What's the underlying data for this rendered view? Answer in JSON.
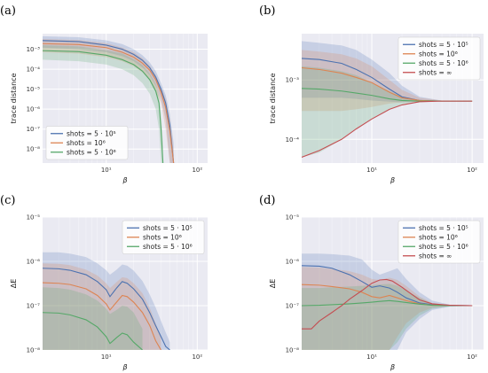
{
  "colors": {
    "blue": "#4c72b0",
    "orange": "#dd8452",
    "green": "#55a868",
    "red": "#c44e52",
    "background": "#eaeaf2",
    "grid": "#ffffff"
  },
  "chart_data": [
    {
      "type": "line",
      "panel": "(a)",
      "xlabel": "β",
      "ylabel": "trace distance",
      "xscale": "log",
      "yscale": "log",
      "xlim": [
        2,
        130
      ],
      "ylim": [
        2e-09,
        0.006
      ],
      "xticks": [
        {
          "v": 10,
          "label": "10¹"
        },
        {
          "v": 100,
          "label": "10²"
        }
      ],
      "yticks": [
        {
          "v": 1e-08,
          "label": "10⁻⁸"
        },
        {
          "v": 1e-07,
          "label": "10⁻⁷"
        },
        {
          "v": 1e-06,
          "label": "10⁻⁶"
        },
        {
          "v": 1e-05,
          "label": "10⁻⁵"
        },
        {
          "v": 0.0001,
          "label": "10⁻⁴"
        },
        {
          "v": 0.001,
          "label": "10⁻³"
        }
      ],
      "grid": true,
      "legend_position": "bottom-left",
      "series": [
        {
          "name": "shots = 5 · 10⁵",
          "color": "blue",
          "x": [
            2,
            5,
            10,
            15,
            20,
            25,
            30,
            35,
            40,
            45,
            50,
            55
          ],
          "y": [
            0.0027,
            0.0024,
            0.0016,
            0.001,
            0.00055,
            0.00028,
            0.00012,
            4e-05,
            1e-05,
            2e-06,
            1.5e-07,
            2e-09
          ],
          "lower": [
            0.0012,
            0.001,
            0.0007,
            0.00045,
            0.00025,
            0.00012,
            5e-05,
            1.5e-05,
            3e-06,
            3e-07,
            2e-09,
            2e-09
          ],
          "upper": [
            0.0045,
            0.004,
            0.0028,
            0.0018,
            0.001,
            0.0005,
            0.00022,
            8e-05,
            2e-05,
            5e-06,
            6e-07,
            2e-08
          ]
        },
        {
          "name": "shots = 10⁶",
          "color": "orange",
          "x": [
            2,
            5,
            10,
            15,
            20,
            25,
            30,
            35,
            40,
            45,
            50,
            55
          ],
          "y": [
            0.0019,
            0.0017,
            0.0012,
            0.0007,
            0.0004,
            0.0002,
            9e-05,
            3e-05,
            7e-06,
            1.2e-06,
            8e-08,
            2e-09
          ],
          "lower": [
            0.0007,
            0.0006,
            0.0004,
            0.00025,
            0.00014,
            7e-05,
            3e-05,
            8e-06,
            2e-06,
            1e-07,
            2e-09,
            2e-09
          ],
          "upper": [
            0.0032,
            0.0029,
            0.002,
            0.0012,
            0.0007,
            0.00035,
            0.00015,
            5e-05,
            1.2e-05,
            3e-06,
            3e-07,
            8e-09
          ]
        },
        {
          "name": "shots = 5 · 10⁶",
          "color": "green",
          "x": [
            2,
            5,
            10,
            15,
            20,
            25,
            30,
            35,
            38,
            40,
            42
          ],
          "y": [
            0.00085,
            0.00075,
            0.0005,
            0.0003,
            0.00017,
            8e-05,
            3e-05,
            8e-06,
            2e-06,
            1e-07,
            2e-09
          ],
          "lower": [
            0.0003,
            0.00025,
            0.00017,
            0.0001,
            5e-05,
            2e-05,
            6e-06,
            1e-06,
            1e-07,
            2e-09,
            2e-09
          ],
          "upper": [
            0.0016,
            0.0014,
            0.0009,
            0.0006,
            0.00032,
            0.00016,
            6e-05,
            1.8e-05,
            5e-06,
            6e-07,
            2e-08
          ]
        }
      ]
    },
    {
      "type": "line",
      "panel": "(b)",
      "xlabel": "β",
      "ylabel": "trace distance",
      "xscale": "log",
      "yscale": "log",
      "xlim": [
        2,
        130
      ],
      "ylim": [
        4e-05,
        0.006
      ],
      "xticks": [
        {
          "v": 10,
          "label": "10¹"
        },
        {
          "v": 100,
          "label": "10²"
        }
      ],
      "yticks": [
        {
          "v": 0.0001,
          "label": "10⁻⁴"
        },
        {
          "v": 0.001,
          "label": "10⁻³"
        }
      ],
      "grid": true,
      "legend_position": "top-right",
      "series": [
        {
          "name": "shots = 5 · 10⁵",
          "color": "blue",
          "x": [
            2,
            3,
            5,
            7,
            10,
            15,
            20,
            30,
            50,
            100
          ],
          "y": [
            0.0023,
            0.0022,
            0.0019,
            0.0015,
            0.0011,
            0.0007,
            0.00052,
            0.00045,
            0.00044,
            0.00044
          ],
          "lower": [
            0.0005,
            0.0005,
            0.0005,
            0.00048,
            0.00045,
            0.00043,
            0.00042,
            0.00043,
            0.00044,
            0.00044
          ],
          "upper": [
            0.0045,
            0.0042,
            0.0038,
            0.0032,
            0.0022,
            0.0013,
            0.0008,
            0.00052,
            0.00045,
            0.00044
          ]
        },
        {
          "name": "shots = 10⁶",
          "color": "orange",
          "x": [
            2,
            3,
            5,
            7,
            10,
            15,
            20,
            30,
            50,
            100
          ],
          "y": [
            0.0016,
            0.0015,
            0.0013,
            0.0011,
            0.0009,
            0.00062,
            0.0005,
            0.00045,
            0.00044,
            0.00044
          ],
          "lower": [
            0.0003,
            0.0003,
            0.0003,
            0.00032,
            0.00035,
            0.0004,
            0.00042,
            0.00043,
            0.00044,
            0.00044
          ],
          "upper": [
            0.0032,
            0.003,
            0.0027,
            0.0023,
            0.0017,
            0.001,
            0.00068,
            0.0005,
            0.00045,
            0.00044
          ]
        },
        {
          "name": "shots = 5 · 10⁶",
          "color": "green",
          "x": [
            2,
            3,
            5,
            7,
            10,
            15,
            20,
            30,
            50,
            100
          ],
          "y": [
            0.00072,
            0.0007,
            0.00065,
            0.0006,
            0.00055,
            0.00048,
            0.00045,
            0.00044,
            0.00044,
            0.00044
          ],
          "lower": [
            5e-05,
            6e-05,
            0.0001,
            0.00015,
            0.00022,
            0.00032,
            0.00038,
            0.00042,
            0.00044,
            0.00044
          ],
          "upper": [
            0.0017,
            0.0016,
            0.0014,
            0.0012,
            0.0009,
            0.00065,
            0.00052,
            0.00046,
            0.00044,
            0.00044
          ]
        },
        {
          "name": "shots = ∞",
          "color": "red",
          "x": [
            2,
            3,
            5,
            7,
            10,
            15,
            20,
            30,
            50,
            100
          ],
          "y": [
            5e-05,
            6.5e-05,
            0.0001,
            0.00015,
            0.00022,
            0.00032,
            0.00038,
            0.00043,
            0.00044,
            0.00044
          ]
        }
      ]
    },
    {
      "type": "line",
      "panel": "(c)",
      "xlabel": "β",
      "ylabel": "ΔE",
      "xscale": "log",
      "yscale": "log",
      "xlim": [
        2,
        130
      ],
      "ylim": [
        1e-08,
        1e-05
      ],
      "xticks": [
        {
          "v": 10,
          "label": "10¹"
        },
        {
          "v": 100,
          "label": "10²"
        }
      ],
      "yticks": [
        {
          "v": 1e-08,
          "label": "10⁻⁸"
        },
        {
          "v": 1e-07,
          "label": "10⁻⁷"
        },
        {
          "v": 1e-06,
          "label": "10⁻⁶"
        },
        {
          "v": 1e-05,
          "label": "10⁻⁵"
        }
      ],
      "grid": true,
      "legend_position": "top-right",
      "series": [
        {
          "name": "shots = 5 · 10⁵",
          "color": "blue",
          "x": [
            2,
            3,
            4,
            6,
            8,
            10,
            11,
            13,
            15,
            17,
            20,
            25,
            30,
            35,
            40,
            45,
            50
          ],
          "y": [
            7e-07,
            6.8e-07,
            6.3e-07,
            5e-07,
            3.5e-07,
            2.3e-07,
            1.6e-07,
            2.5e-07,
            3.5e-07,
            3.2e-07,
            2.4e-07,
            1.4e-07,
            7e-08,
            3.5e-08,
            2e-08,
            1.2e-08,
            1e-08
          ],
          "lower": [
            1e-08,
            1e-08,
            1e-08,
            1e-08,
            1e-08,
            1e-08,
            1e-08,
            1e-08,
            1e-08,
            1e-08,
            1e-08,
            1e-08,
            1e-08,
            1e-08,
            1e-08,
            1e-08,
            1e-08
          ],
          "upper": [
            1.6e-06,
            1.6e-06,
            1.5e-06,
            1.25e-06,
            9e-07,
            6.3e-07,
            5e-07,
            6.5e-07,
            8.5e-07,
            8e-07,
            6.2e-07,
            3.6e-07,
            1.8e-07,
            9e-08,
            4.5e-08,
            2.5e-08,
            1.5e-08
          ]
        },
        {
          "name": "shots = 10⁶",
          "color": "orange",
          "x": [
            2,
            3,
            4,
            6,
            8,
            10,
            11,
            13,
            15,
            17,
            20,
            25,
            30,
            35,
            40
          ],
          "y": [
            3.3e-07,
            3.2e-07,
            3e-07,
            2.4e-07,
            1.7e-07,
            1.1e-07,
            8e-08,
            1.2e-07,
            1.7e-07,
            1.6e-07,
            1.2e-07,
            7e-08,
            3.6e-08,
            1.6e-08,
            1e-08
          ],
          "lower": [
            1e-08,
            1e-08,
            1e-08,
            1e-08,
            1e-08,
            1e-08,
            1e-08,
            1e-08,
            1e-08,
            1e-08,
            1e-08,
            1e-08,
            1e-08,
            1e-08,
            1e-08
          ],
          "upper": [
            9e-07,
            8.8e-07,
            8.2e-07,
            6.5e-07,
            4.8e-07,
            3.2e-07,
            2.5e-07,
            3.4e-07,
            4.4e-07,
            4.2e-07,
            3.2e-07,
            1.9e-07,
            9e-08,
            4e-08,
            1.8e-08
          ]
        },
        {
          "name": "shots = 5 · 10⁶",
          "color": "green",
          "x": [
            2,
            3,
            4,
            6,
            8,
            10,
            11,
            13,
            15,
            17,
            20,
            25
          ],
          "y": [
            7e-08,
            6.8e-08,
            6.2e-08,
            4.8e-08,
            3.3e-08,
            2e-08,
            1.4e-08,
            1.9e-08,
            2.4e-08,
            2.2e-08,
            1.5e-08,
            1e-08
          ],
          "lower": [
            1e-08,
            1e-08,
            1e-08,
            1e-08,
            1e-08,
            1e-08,
            1e-08,
            1e-08,
            1e-08,
            1e-08,
            1e-08,
            1e-08
          ],
          "upper": [
            2.6e-07,
            2.5e-07,
            2.3e-07,
            1.8e-07,
            1.3e-07,
            8.5e-08,
            6.5e-08,
            8e-08,
            1e-07,
            9.5e-08,
            7e-08,
            3e-08
          ]
        }
      ]
    },
    {
      "type": "line",
      "panel": "(d)",
      "xlabel": "β",
      "ylabel": "ΔE",
      "xscale": "log",
      "yscale": "log",
      "xlim": [
        2,
        130
      ],
      "ylim": [
        1e-08,
        1e-05
      ],
      "xticks": [
        {
          "v": 10,
          "label": "10¹"
        },
        {
          "v": 100,
          "label": "10²"
        }
      ],
      "yticks": [
        {
          "v": 1e-08,
          "label": "10⁻⁸"
        },
        {
          "v": 1e-07,
          "label": "10⁻⁷"
        },
        {
          "v": 1e-06,
          "label": "10⁻⁶"
        },
        {
          "v": 1e-05,
          "label": "10⁻⁵"
        }
      ],
      "grid": true,
      "legend_position": "top-right",
      "series": [
        {
          "name": "shots = 5 · 10⁵",
          "color": "blue",
          "x": [
            2,
            3,
            4,
            6,
            8,
            10,
            12,
            15,
            18,
            22,
            30,
            40,
            60,
            100
          ],
          "y": [
            8e-07,
            7.8e-07,
            7e-07,
            5e-07,
            3.5e-07,
            2.6e-07,
            2.8e-07,
            2.5e-07,
            2e-07,
            1.5e-07,
            1.15e-07,
            1.05e-07,
            1.02e-07,
            1e-07
          ],
          "lower": [
            1e-08,
            1e-08,
            1e-08,
            1e-08,
            1e-08,
            1e-08,
            1e-08,
            1e-08,
            1e-08,
            2.5e-08,
            5e-08,
            8e-08,
            9.5e-08,
            1e-07
          ],
          "upper": [
            1.5e-06,
            1.5e-06,
            1.45e-06,
            1.35e-06,
            1.1e-06,
            6.5e-07,
            5e-07,
            6e-07,
            7e-07,
            4e-07,
            2e-07,
            1.3e-07,
            1.05e-07,
            1e-07
          ]
        },
        {
          "name": "shots = 10⁶",
          "color": "orange",
          "x": [
            2,
            3,
            4,
            6,
            8,
            10,
            12,
            15,
            18,
            22,
            30,
            40,
            60,
            100
          ],
          "y": [
            3e-07,
            2.9e-07,
            2.7e-07,
            2.4e-07,
            2e-07,
            1.6e-07,
            1.5e-07,
            1.7e-07,
            1.5e-07,
            1.3e-07,
            1.1e-07,
            1.03e-07,
            1.01e-07,
            1e-07
          ],
          "lower": [
            1e-08,
            1e-08,
            1e-08,
            1e-08,
            1e-08,
            1e-08,
            1e-08,
            1e-08,
            2e-08,
            4e-08,
            7e-08,
            9e-08,
            9.8e-08,
            1e-07
          ],
          "upper": [
            7.5e-07,
            7.3e-07,
            6.8e-07,
            6e-07,
            5e-07,
            4e-07,
            3.8e-07,
            4.3e-07,
            3.8e-07,
            2.8e-07,
            1.6e-07,
            1.15e-07,
            1.02e-07,
            1e-07
          ]
        },
        {
          "name": "shots = 5 · 10⁶",
          "color": "green",
          "x": [
            2,
            3,
            4,
            6,
            8,
            10,
            12,
            15,
            18,
            22,
            30,
            40,
            60,
            100
          ],
          "y": [
            1e-07,
            1.02e-07,
            1.05e-07,
            1.1e-07,
            1.15e-07,
            1.2e-07,
            1.25e-07,
            1.3e-07,
            1.25e-07,
            1.18e-07,
            1.08e-07,
            1.02e-07,
            1e-07,
            1e-07
          ],
          "lower": [
            1e-08,
            1e-08,
            1e-08,
            1e-08,
            1e-08,
            1e-08,
            1e-08,
            1e-08,
            1.5e-08,
            3e-08,
            6e-08,
            8.5e-08,
            9.7e-08,
            1e-07
          ],
          "upper": [
            2.5e-07,
            2.5e-07,
            2.6e-07,
            2.7e-07,
            2.8e-07,
            2.9e-07,
            3e-07,
            3.1e-07,
            2.8e-07,
            2.2e-07,
            1.5e-07,
            1.12e-07,
            1.02e-07,
            1e-07
          ]
        },
        {
          "name": "shots = ∞",
          "color": "red",
          "x": [
            2,
            2.5,
            3,
            4,
            5,
            6,
            8,
            10,
            12,
            14,
            16,
            20,
            25,
            30,
            40,
            60,
            100
          ],
          "y": [
            3e-08,
            3e-08,
            4.5e-08,
            7e-08,
            1e-07,
            1.4e-07,
            2.2e-07,
            3.2e-07,
            3.8e-07,
            3.9e-07,
            3.6e-07,
            2.6e-07,
            1.8e-07,
            1.35e-07,
            1.1e-07,
            1.02e-07,
            1e-07
          ]
        }
      ]
    }
  ]
}
